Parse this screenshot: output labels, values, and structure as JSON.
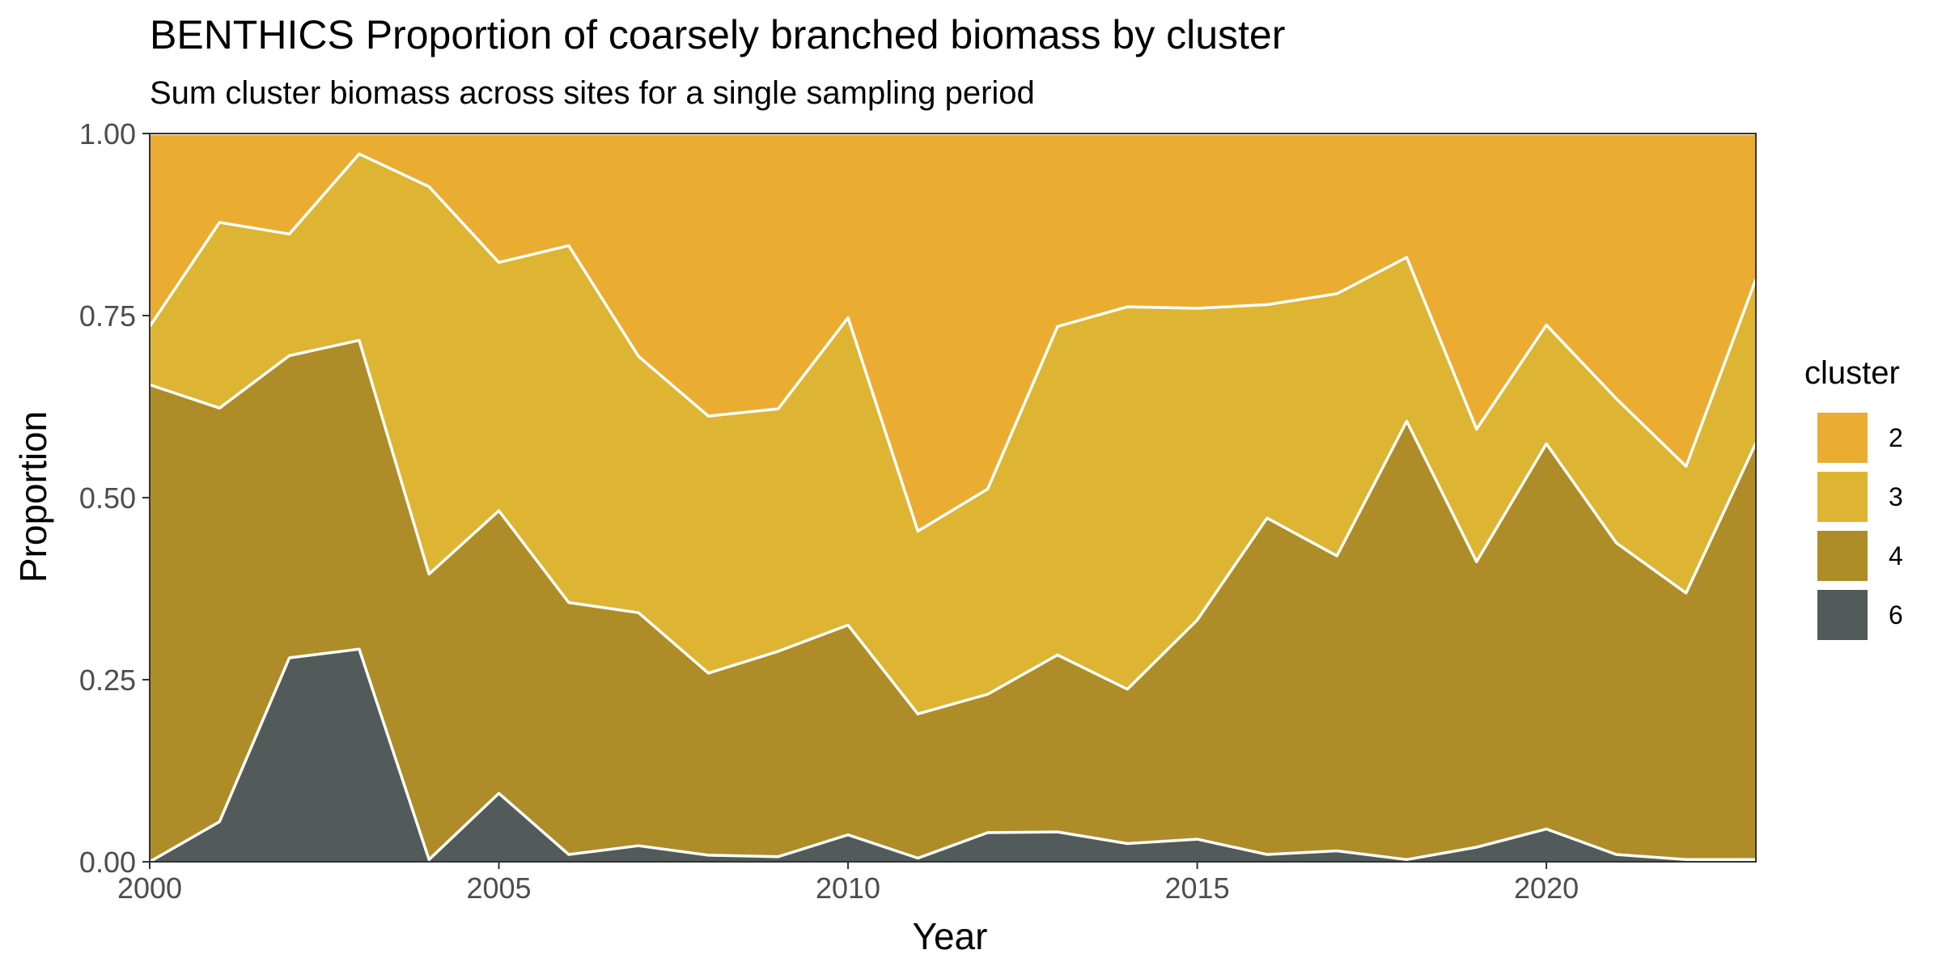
{
  "chart_data": {
    "type": "area",
    "stacked": true,
    "normalized": true,
    "title": "BENTHICS Proportion of coarsely branched biomass by cluster",
    "subtitle": "Sum cluster biomass across sites for a single sampling period",
    "xlabel": "Year",
    "ylabel": "Proportion",
    "xlim": [
      2000,
      2023
    ],
    "ylim": [
      0,
      1
    ],
    "x_ticks": [
      2000,
      2005,
      2010,
      2015,
      2020
    ],
    "y_ticks": [
      0,
      0.25,
      0.5,
      0.75,
      1
    ],
    "y_tick_labels": [
      "0.00",
      "0.25",
      "0.50",
      "0.75",
      "1.00"
    ],
    "grid": false,
    "legend_title": "cluster",
    "legend_position": "right",
    "x": [
      2000,
      2001,
      2002,
      2003,
      2004,
      2005,
      2006,
      2007,
      2008,
      2009,
      2010,
      2011,
      2012,
      2013,
      2014,
      2015,
      2016,
      2017,
      2018,
      2019,
      2020,
      2021,
      2022,
      2023
    ],
    "series": [
      {
        "name": "2",
        "color": "#EBAC32",
        "values": [
          0.265,
          0.122,
          0.138,
          0.028,
          0.073,
          0.177,
          0.154,
          0.306,
          0.388,
          0.378,
          0.253,
          0.546,
          0.488,
          0.265,
          0.238,
          0.24,
          0.235,
          0.22,
          0.17,
          0.406,
          0.263,
          0.364,
          0.457,
          0.2
        ]
      },
      {
        "name": "3",
        "color": "#DDB533",
        "values": [
          0.08,
          0.255,
          0.167,
          0.256,
          0.532,
          0.341,
          0.49,
          0.352,
          0.353,
          0.333,
          0.422,
          0.251,
          0.282,
          0.451,
          0.525,
          0.428,
          0.293,
          0.36,
          0.225,
          0.182,
          0.163,
          0.198,
          0.174,
          0.225
        ]
      },
      {
        "name": "4",
        "color": "#AE8C27",
        "values": [
          0.655,
          0.568,
          0.415,
          0.424,
          0.392,
          0.388,
          0.346,
          0.32,
          0.25,
          0.282,
          0.288,
          0.198,
          0.19,
          0.243,
          0.212,
          0.301,
          0.462,
          0.405,
          0.602,
          0.392,
          0.529,
          0.428,
          0.366,
          0.572
        ]
      },
      {
        "name": "6",
        "color": "#535B5A",
        "values": [
          0.0,
          0.055,
          0.28,
          0.292,
          0.003,
          0.094,
          0.01,
          0.022,
          0.009,
          0.007,
          0.037,
          0.005,
          0.04,
          0.041,
          0.025,
          0.031,
          0.01,
          0.015,
          0.003,
          0.02,
          0.045,
          0.01,
          0.003,
          0.003
        ]
      }
    ]
  }
}
